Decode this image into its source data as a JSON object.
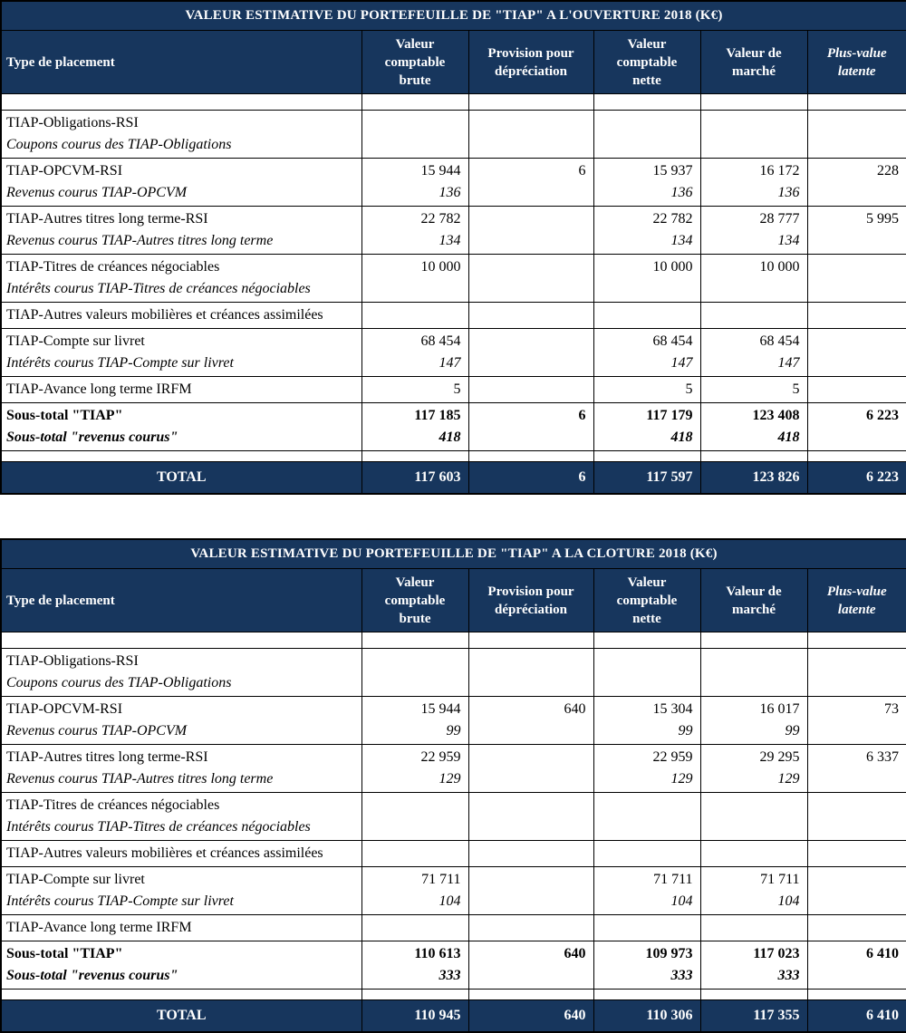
{
  "colors": {
    "header_bg": "#17365D",
    "header_text": "#FFFFFF",
    "border": "#000000",
    "body_text": "#000000"
  },
  "tables": [
    {
      "title": "VALEUR ESTIMATIVE DU PORTEFEUILLE DE \"TIAP\" A L'OUVERTURE 2018 (K€)",
      "columns": [
        {
          "label": "Type de placement",
          "italic": false
        },
        {
          "label": "Valeur comptable brute",
          "italic": false
        },
        {
          "label": "Provision pour dépréciation",
          "italic": false
        },
        {
          "label": "Valeur comptable nette",
          "italic": false
        },
        {
          "label": "Valeur de marché",
          "italic": false
        },
        {
          "label": "Plus-value latente",
          "italic": true
        }
      ],
      "groups": [
        {
          "spacer": true,
          "rows": [
            {
              "label": "",
              "style": "normal",
              "values": [
                "",
                "",
                "",
                "",
                ""
              ]
            }
          ]
        },
        {
          "rows": [
            {
              "label": "TIAP-Obligations-RSI",
              "style": "normal",
              "values": [
                "",
                "",
                "",
                "",
                ""
              ]
            },
            {
              "label": "Coupons courus des TIAP-Obligations",
              "style": "italic",
              "values": [
                "",
                "",
                "",
                "",
                ""
              ]
            }
          ]
        },
        {
          "rows": [
            {
              "label": "TIAP-OPCVM-RSI",
              "style": "normal",
              "values": [
                "15 944",
                "6",
                "15 937",
                "16 172",
                "228"
              ]
            },
            {
              "label": "Revenus courus TIAP-OPCVM",
              "style": "italic",
              "values": [
                "136",
                "",
                "136",
                "136",
                ""
              ]
            }
          ]
        },
        {
          "rows": [
            {
              "label": "TIAP-Autres titres long terme-RSI",
              "style": "normal",
              "values": [
                "22 782",
                "",
                "22 782",
                "28 777",
                "5 995"
              ]
            },
            {
              "label": "Revenus courus TIAP-Autres titres long terme",
              "style": "italic",
              "values": [
                "134",
                "",
                "134",
                "134",
                ""
              ]
            }
          ]
        },
        {
          "rows": [
            {
              "label": "TIAP-Titres de créances négociables",
              "style": "normal",
              "values": [
                "10 000",
                "",
                "10 000",
                "10 000",
                ""
              ]
            },
            {
              "label": "Intérêts courus TIAP-Titres de créances négociables",
              "style": "italic",
              "values": [
                "",
                "",
                "",
                "",
                ""
              ]
            }
          ]
        },
        {
          "rows": [
            {
              "label": "TIAP-Autres valeurs mobilières et créances assimilées",
              "style": "normal",
              "values": [
                "",
                "",
                "",
                "",
                ""
              ]
            }
          ]
        },
        {
          "rows": [
            {
              "label": "TIAP-Compte sur livret",
              "style": "normal",
              "values": [
                "68 454",
                "",
                "68 454",
                "68 454",
                ""
              ]
            },
            {
              "label": "Intérêts courus TIAP-Compte sur livret",
              "style": "italic",
              "values": [
                "147",
                "",
                "147",
                "147",
                ""
              ]
            }
          ]
        },
        {
          "rows": [
            {
              "label": "TIAP-Avance long terme IRFM",
              "style": "normal",
              "values": [
                "5",
                "",
                "5",
                "5",
                ""
              ]
            }
          ]
        },
        {
          "rows": [
            {
              "label": "Sous-total \"TIAP\"",
              "style": "bold",
              "values": [
                "117 185",
                "6",
                "117 179",
                "123 408",
                "6 223"
              ]
            },
            {
              "label": "Sous-total \"revenus courus\"",
              "style": "bold-italic",
              "values": [
                "418",
                "",
                "418",
                "418",
                ""
              ]
            }
          ]
        }
      ],
      "total": {
        "label": "TOTAL",
        "values": [
          "117 603",
          "6",
          "117 597",
          "123 826",
          "6 223"
        ]
      }
    },
    {
      "title": "VALEUR ESTIMATIVE DU PORTEFEUILLE DE \"TIAP\" A LA CLOTURE 2018 (K€)",
      "columns": [
        {
          "label": "Type de placement",
          "italic": false
        },
        {
          "label": "Valeur comptable brute",
          "italic": false
        },
        {
          "label": "Provision pour dépréciation",
          "italic": false
        },
        {
          "label": "Valeur comptable nette",
          "italic": false
        },
        {
          "label": "Valeur de marché",
          "italic": false
        },
        {
          "label": "Plus-value latente",
          "italic": true
        }
      ],
      "groups": [
        {
          "spacer": true,
          "rows": [
            {
              "label": "",
              "style": "normal",
              "values": [
                "",
                "",
                "",
                "",
                ""
              ]
            }
          ]
        },
        {
          "rows": [
            {
              "label": "TIAP-Obligations-RSI",
              "style": "normal",
              "values": [
                "",
                "",
                "",
                "",
                ""
              ]
            },
            {
              "label": "Coupons courus des TIAP-Obligations",
              "style": "italic",
              "values": [
                "",
                "",
                "",
                "",
                ""
              ]
            }
          ]
        },
        {
          "rows": [
            {
              "label": "TIAP-OPCVM-RSI",
              "style": "normal",
              "values": [
                "15 944",
                "640",
                "15 304",
                "16 017",
                "73"
              ]
            },
            {
              "label": "Revenus courus TIAP-OPCVM",
              "style": "italic",
              "values": [
                "99",
                "",
                "99",
                "99",
                ""
              ]
            }
          ]
        },
        {
          "rows": [
            {
              "label": "TIAP-Autres titres long terme-RSI",
              "style": "normal",
              "values": [
                "22 959",
                "",
                "22 959",
                "29 295",
                "6 337"
              ]
            },
            {
              "label": "Revenus courus TIAP-Autres titres long terme",
              "style": "italic",
              "values": [
                "129",
                "",
                "129",
                "129",
                ""
              ]
            }
          ]
        },
        {
          "rows": [
            {
              "label": "TIAP-Titres de créances négociables",
              "style": "normal",
              "values": [
                "",
                "",
                "",
                "",
                ""
              ]
            },
            {
              "label": "Intérêts courus TIAP-Titres de créances négociables",
              "style": "italic",
              "values": [
                "",
                "",
                "",
                "",
                ""
              ]
            }
          ]
        },
        {
          "rows": [
            {
              "label": "TIAP-Autres valeurs mobilières et créances assimilées",
              "style": "normal",
              "values": [
                "",
                "",
                "",
                "",
                ""
              ]
            }
          ]
        },
        {
          "rows": [
            {
              "label": "TIAP-Compte sur livret",
              "style": "normal",
              "values": [
                "71 711",
                "",
                "71 711",
                "71 711",
                ""
              ]
            },
            {
              "label": "Intérêts courus TIAP-Compte sur livret",
              "style": "italic",
              "values": [
                "104",
                "",
                "104",
                "104",
                ""
              ]
            }
          ]
        },
        {
          "rows": [
            {
              "label": "TIAP-Avance long terme IRFM",
              "style": "normal",
              "values": [
                "",
                "",
                "",
                "",
                ""
              ]
            }
          ]
        },
        {
          "rows": [
            {
              "label": "Sous-total \"TIAP\"",
              "style": "bold",
              "values": [
                "110 613",
                "640",
                "109 973",
                "117 023",
                "6 410"
              ]
            },
            {
              "label": "Sous-total \"revenus courus\"",
              "style": "bold-italic",
              "values": [
                "333",
                "",
                "333",
                "333",
                ""
              ]
            }
          ]
        }
      ],
      "total": {
        "label": "TOTAL",
        "values": [
          "110 945",
          "640",
          "110 306",
          "117 355",
          "6 410"
        ]
      }
    }
  ]
}
